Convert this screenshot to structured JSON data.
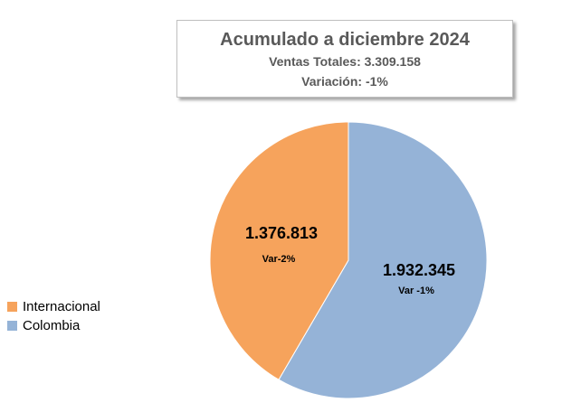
{
  "chart_data": {
    "type": "pie",
    "title": "Acumulado a diciembre 2024",
    "subtitle_lines": [
      "Ventas Totales: 3.309.158",
      "Variación: -1%"
    ],
    "slices": [
      {
        "name": "Colombia",
        "value": 1932345,
        "value_label": "1.932.345",
        "var_label": "Var -1%",
        "color": "#95B3D7"
      },
      {
        "name": "Internacional",
        "value": 1376813,
        "value_label": "1.376.813",
        "var_label": "Var-2%",
        "color": "#F6A35C"
      }
    ],
    "legend": {
      "placement": "left",
      "items": [
        {
          "label": "Internacional",
          "color": "#F6A35C"
        },
        {
          "label": "Colombia",
          "color": "#95B3D7"
        }
      ]
    }
  }
}
